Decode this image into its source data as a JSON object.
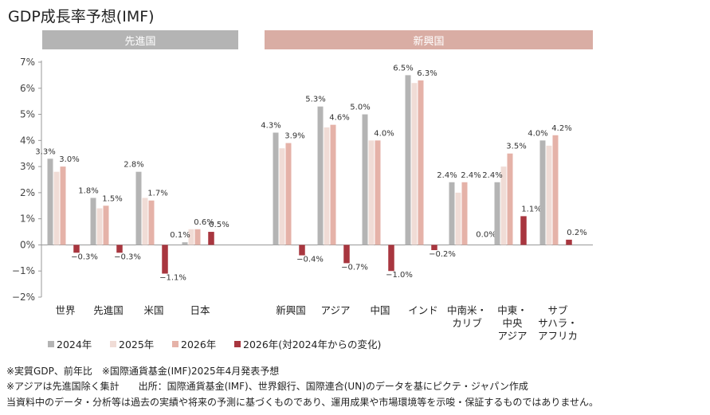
{
  "title": "GDP成長率予想(IMF)",
  "groups": {
    "advanced": "先進国",
    "emerging": "新興国"
  },
  "notes": [
    "※実質GDP、前年比　※国際通貨基金(IMF)2025年4月発表予想",
    "※アジアは先進国除く集計　　出所：国際通貨基金(IMF)、世界銀行、国際連合(UN)のデータを基にピクテ・ジャパン作成",
    "当資料中のデータ・分析等は過去の実績や将来の予測に基づくものであり、運用成果や市場環境等を示唆・保証するものではありません。"
  ],
  "chart_data": {
    "type": "bar",
    "categories": [
      [
        "世界"
      ],
      [
        "先進国"
      ],
      [
        "米国"
      ],
      [
        "日本"
      ],
      [
        "新興国"
      ],
      [
        "アジア"
      ],
      [
        "中国"
      ],
      [
        "インド"
      ],
      [
        "中南米・",
        "カリブ"
      ],
      [
        "中東・",
        "中央",
        "アジア"
      ],
      [
        "サブ",
        "サハラ・",
        "アフリカ"
      ]
    ],
    "series": [
      {
        "name": "2024年",
        "values": [
          3.3,
          1.8,
          2.8,
          0.1,
          4.3,
          5.3,
          5.0,
          6.5,
          2.4,
          2.4,
          4.0
        ],
        "color": "#b4b4b4"
      },
      {
        "name": "2025年",
        "values": [
          2.8,
          1.4,
          1.8,
          0.6,
          3.7,
          4.5,
          4.0,
          6.2,
          2.0,
          3.0,
          3.8
        ],
        "color": "#f0dcd6"
      },
      {
        "name": "2026年",
        "values": [
          3.0,
          1.5,
          1.7,
          0.6,
          3.9,
          4.6,
          4.0,
          6.3,
          2.4,
          3.5,
          4.2
        ],
        "color": "#e5b2a8"
      },
      {
        "name": "2026年(対2024年からの変化)",
        "values": [
          -0.3,
          -0.3,
          -1.1,
          0.5,
          -0.4,
          -0.7,
          -1.0,
          -0.2,
          0.0,
          1.1,
          0.2
        ],
        "color": "#a8363f"
      }
    ],
    "labels": [
      [
        "3.3%",
        "3.0%",
        "−0.3%"
      ],
      [
        "1.8%",
        "1.5%",
        "−0.3%"
      ],
      [
        "2.8%",
        "1.7%",
        "−1.1%"
      ],
      [
        "0.1%",
        "0.6%",
        "0.5%"
      ],
      [
        "4.3%",
        "3.9%",
        "−0.4%"
      ],
      [
        "5.3%",
        "4.6%",
        "−0.7%"
      ],
      [
        "5.0%",
        "4.0%",
        "−1.0%"
      ],
      [
        "6.5%",
        "6.3%",
        "−0.2%"
      ],
      [
        "2.4%",
        "2.4%",
        "0.0%"
      ],
      [
        "2.4%",
        "3.5%",
        "1.1%"
      ],
      [
        "4.0%",
        "4.2%",
        "0.2%"
      ]
    ],
    "yticks": [
      "7%",
      "6%",
      "5%",
      "4%",
      "3%",
      "2%",
      "1%",
      "0%",
      "−1%",
      "−2%"
    ],
    "ylim": [
      -2,
      7
    ],
    "legend": [
      "2024年",
      "2025年",
      "2026年",
      "2026年(対2024年からの変化)"
    ],
    "legend_position": "bottom",
    "grid": false
  }
}
